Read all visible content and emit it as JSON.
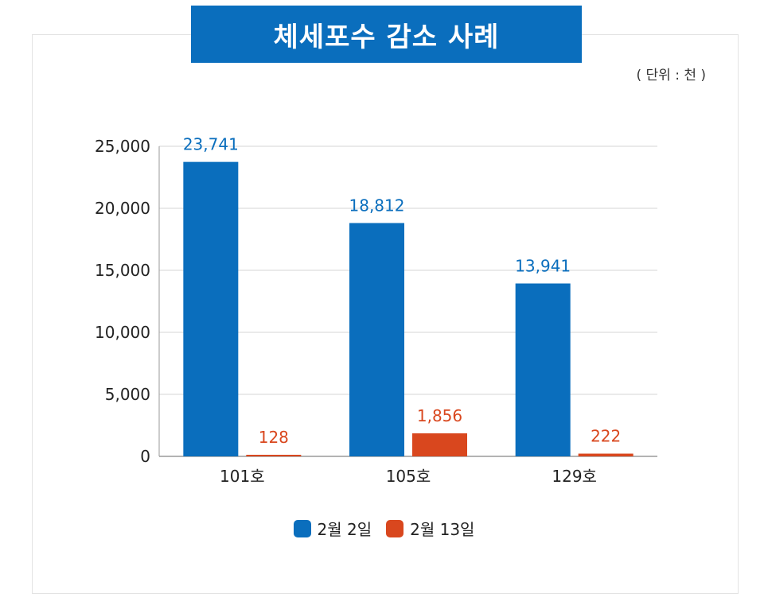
{
  "title": "체세포수 감소 사례",
  "unit_label": "( 단위 : 천 )",
  "colors": {
    "series1": "#0a6ebd",
    "series2": "#d9471e",
    "title_bg": "#0a6ebd"
  },
  "chart_data": {
    "type": "bar",
    "categories": [
      "101호",
      "105호",
      "129호"
    ],
    "series": [
      {
        "name": "2월 2일",
        "values": [
          23741,
          18812,
          13941
        ],
        "labels": [
          "23,741",
          "18,812",
          "13,941"
        ]
      },
      {
        "name": "2월 13일",
        "values": [
          128,
          1856,
          222
        ],
        "labels": [
          "128",
          "1,856",
          "222"
        ]
      }
    ],
    "ylim": [
      0,
      25000
    ],
    "yticks": [
      0,
      5000,
      10000,
      15000,
      20000,
      25000
    ],
    "ytick_labels": [
      "0",
      "5,000",
      "10,000",
      "15,000",
      "20,000",
      "25,000"
    ],
    "grid": true,
    "legend_position": "bottom"
  }
}
